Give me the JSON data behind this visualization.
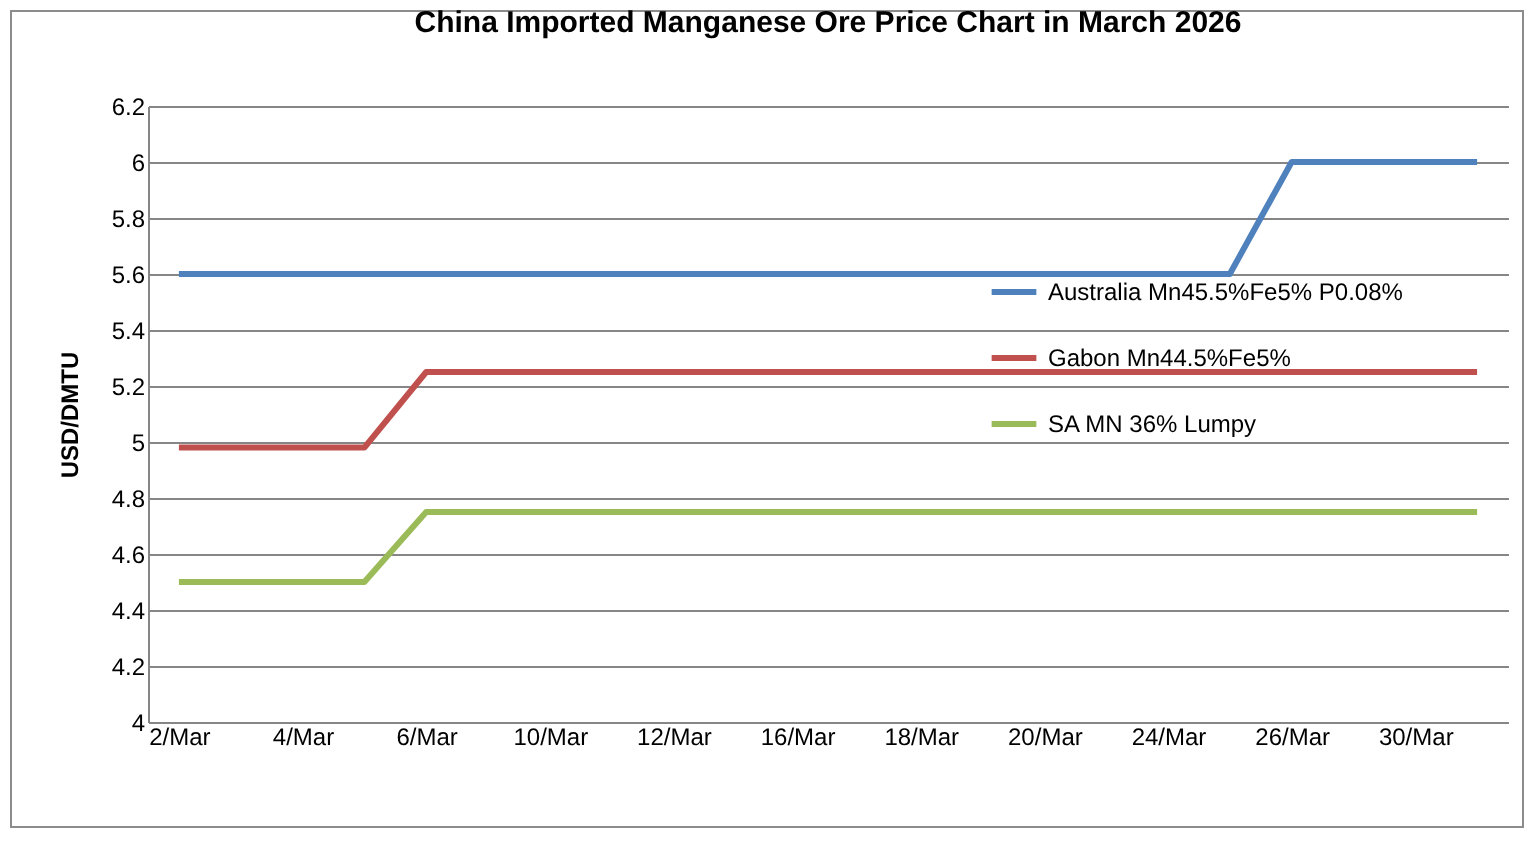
{
  "chart_data": {
    "type": "line",
    "title": "China Imported Manganese Ore Price Chart in March 2026",
    "ylabel": "USD/DMTU",
    "categories": [
      "2/Mar",
      null,
      "4/Mar",
      null,
      "6/Mar",
      null,
      "10/Mar",
      null,
      "12/Mar",
      null,
      "16/Mar",
      null,
      "18/Mar",
      null,
      "20/Mar",
      null,
      "24/Mar",
      null,
      "26/Mar",
      null,
      "30/Mar",
      null
    ],
    "series": [
      {
        "name": "Australia Mn45.5%Fe5% P0.08%",
        "color": "#4f81bd",
        "values": [
          5.6,
          5.6,
          5.6,
          5.6,
          5.6,
          5.6,
          5.6,
          5.6,
          5.6,
          5.6,
          5.6,
          5.6,
          5.6,
          5.6,
          5.6,
          5.6,
          5.6,
          5.6,
          6.0,
          6.0,
          6.0,
          6.0
        ]
      },
      {
        "name": "Gabon Mn44.5%Fe5%",
        "color": "#c0504d",
        "values": [
          4.98,
          4.98,
          4.98,
          4.98,
          5.25,
          5.25,
          5.25,
          5.25,
          5.25,
          5.25,
          5.25,
          5.25,
          5.25,
          5.25,
          5.25,
          5.25,
          5.25,
          5.25,
          5.25,
          5.25,
          5.25,
          5.25
        ]
      },
      {
        "name": "SA MN 36% Lumpy",
        "color": "#9bbb59",
        "values": [
          4.5,
          4.5,
          4.5,
          4.5,
          4.75,
          4.75,
          4.75,
          4.75,
          4.75,
          4.75,
          4.75,
          4.75,
          4.75,
          4.75,
          4.75,
          4.75,
          4.75,
          4.75,
          4.75,
          4.75,
          4.75,
          4.75
        ]
      }
    ],
    "ylim": [
      4,
      6.2
    ],
    "yticks": [
      4,
      4.2,
      4.4,
      4.6,
      4.8,
      5,
      5.2,
      5.4,
      5.6,
      5.8,
      6,
      6.2
    ],
    "grid": "y",
    "legend": "right",
    "marker": "none",
    "line_style": "solid"
  }
}
